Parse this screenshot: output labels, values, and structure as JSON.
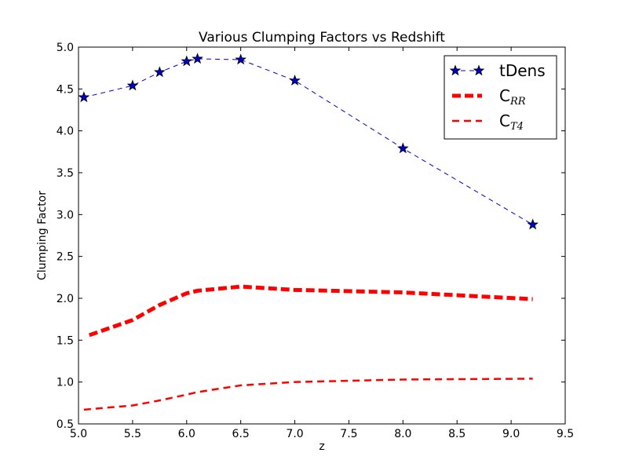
{
  "chart_data": {
    "type": "line",
    "title": "Various Clumping Factors vs Redshift",
    "xlabel": "z",
    "ylabel": "Clumping Factor",
    "xlim": [
      5.0,
      9.5
    ],
    "ylim": [
      0.5,
      5.0
    ],
    "xticks": [
      "5.0",
      "5.5",
      "6.0",
      "6.5",
      "7.0",
      "7.5",
      "8.0",
      "8.5",
      "9.0",
      "9.5"
    ],
    "yticks": [
      "0.5",
      "1.0",
      "1.5",
      "2.0",
      "2.5",
      "3.0",
      "3.5",
      "4.0",
      "4.5",
      "5.0"
    ],
    "grid": false,
    "legend_position": "top-right",
    "series": [
      {
        "name": "tDens",
        "color": "#0000cc",
        "line_style": "dashed-thin",
        "marker": "star",
        "x": [
          5.05,
          5.5,
          5.75,
          6.0,
          6.1,
          6.5,
          7.0,
          8.0,
          9.2
        ],
        "y": [
          4.4,
          4.54,
          4.7,
          4.83,
          4.86,
          4.85,
          4.6,
          3.79,
          2.88
        ]
      },
      {
        "name": "C",
        "name_sub": "RR",
        "color": "#ff0000",
        "line_style": "dashed-thick",
        "marker": "none",
        "x": [
          5.1,
          5.5,
          5.75,
          6.0,
          6.1,
          6.5,
          7.0,
          8.0,
          9.2
        ],
        "y": [
          1.56,
          1.74,
          1.92,
          2.06,
          2.09,
          2.14,
          2.1,
          2.07,
          1.99
        ]
      },
      {
        "name": "C",
        "name_sub": "T4",
        "color": "#ff0000",
        "line_style": "dashed-medium",
        "marker": "none",
        "x": [
          5.05,
          5.5,
          5.75,
          6.0,
          6.1,
          6.5,
          7.0,
          8.0,
          9.2
        ],
        "y": [
          0.67,
          0.72,
          0.78,
          0.85,
          0.88,
          0.96,
          1.0,
          1.03,
          1.04
        ]
      }
    ]
  }
}
